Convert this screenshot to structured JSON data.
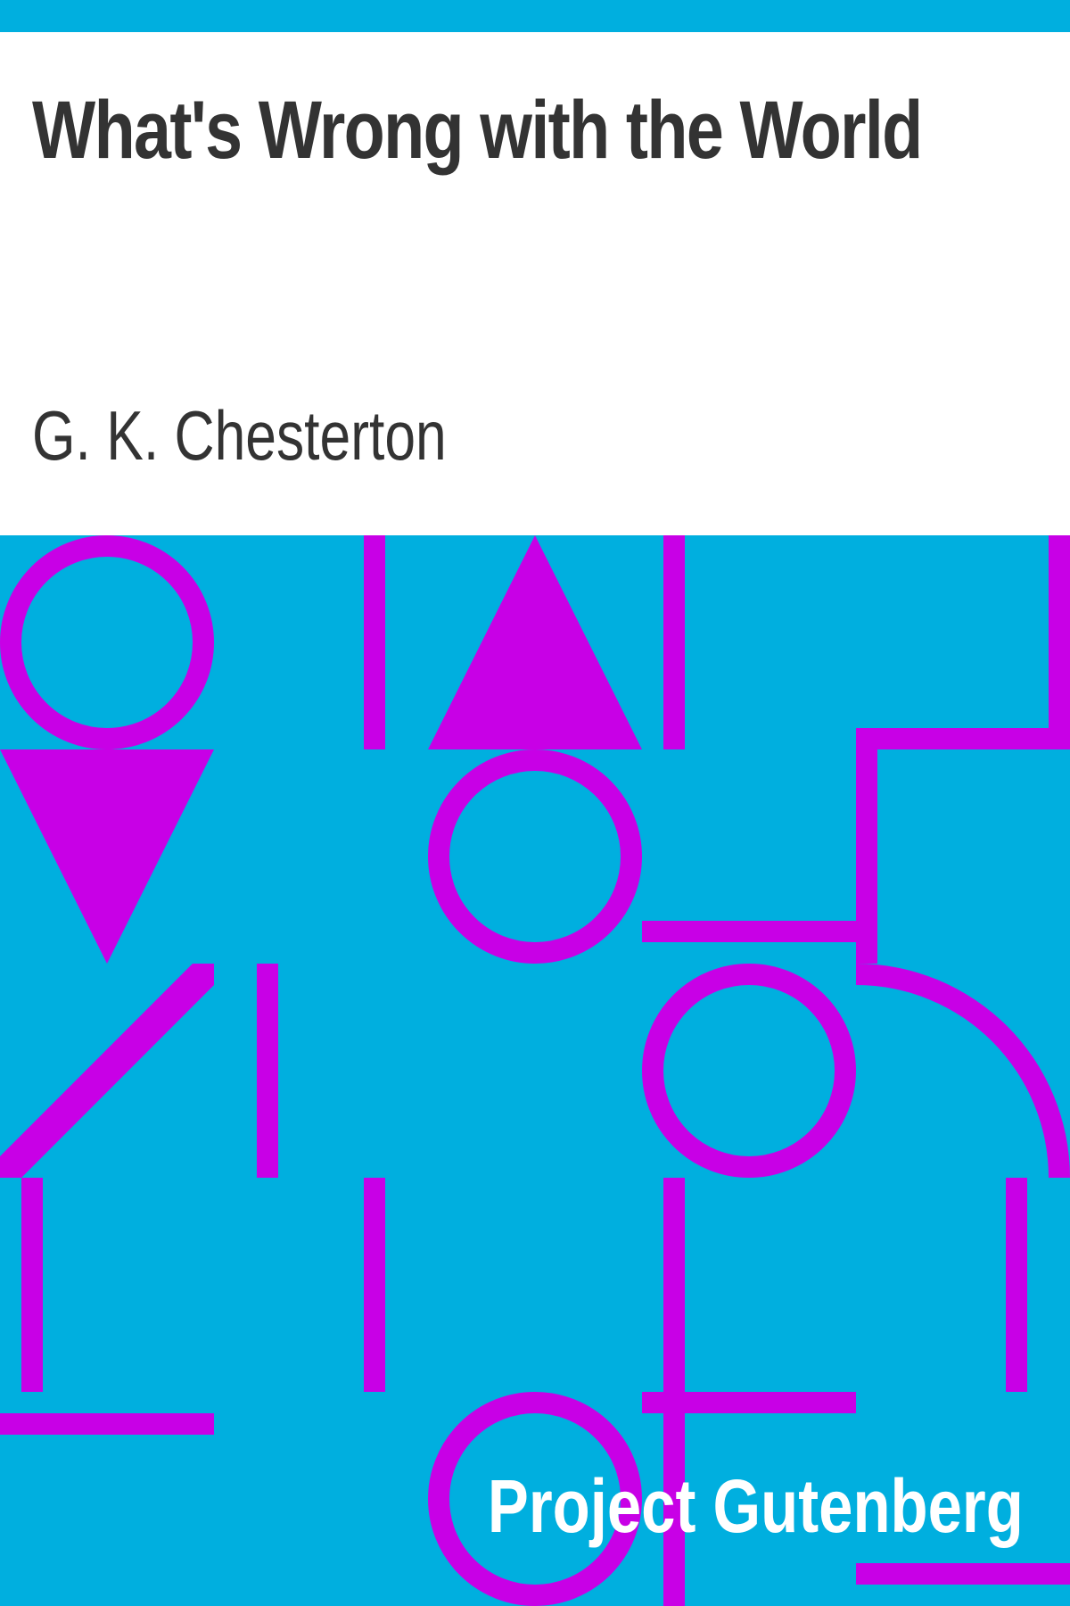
{
  "book": {
    "title": "What's Wrong with the World",
    "author": "G. K. Chesterton"
  },
  "publisher": {
    "name": "Project Gutenberg"
  },
  "colors": {
    "background": "#00afdf",
    "pattern": "#c800e6",
    "title_band": "#ffffff",
    "text_dark": "#333333",
    "text_light": "#ffffff"
  }
}
